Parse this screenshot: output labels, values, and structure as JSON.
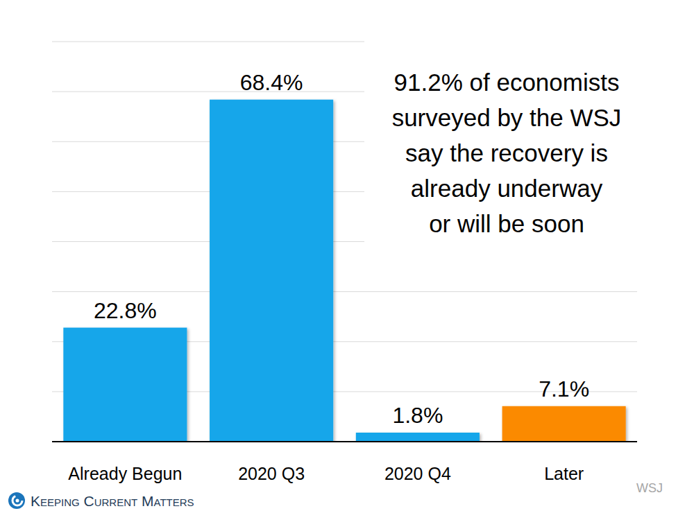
{
  "chart_data": {
    "type": "bar",
    "categories": [
      "Already Begun",
      "2020 Q3",
      "2020 Q4",
      "Later"
    ],
    "values": [
      22.8,
      68.4,
      1.8,
      7.1
    ],
    "value_labels": [
      "22.8%",
      "68.4%",
      "1.8%",
      "7.1%"
    ],
    "colors": [
      "#12a6ea",
      "#12a6ea",
      "#12a6ea",
      "#fb8a06"
    ],
    "ylim": [
      0,
      80
    ],
    "yticks": [
      0,
      10,
      20,
      30,
      40,
      50,
      60,
      70,
      80
    ],
    "grid": true,
    "data_labels": true,
    "tick_labels": "x",
    "annotations": [
      "91.2% of economists",
      "surveyed by the WSJ",
      "say the recovery is",
      "already underway",
      "or will be soon"
    ],
    "source": "WSJ",
    "logo": "Keeping Current Matters"
  }
}
